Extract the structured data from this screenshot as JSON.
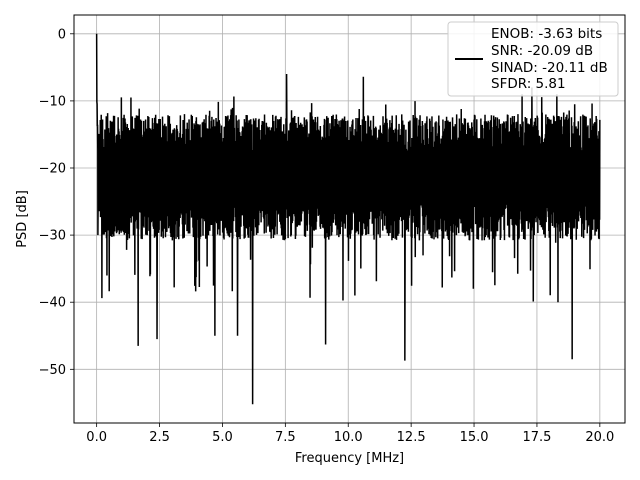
{
  "chart_data": {
    "type": "line",
    "title": "",
    "xlabel": "Frequency [MHz]",
    "ylabel": "PSD [dB]",
    "xlim": [
      -0.9,
      21.0
    ],
    "ylim": [
      -58.0,
      2.8
    ],
    "xticks": [
      0.0,
      2.5,
      5.0,
      7.5,
      10.0,
      12.5,
      15.0,
      17.5,
      20.0
    ],
    "xtick_labels": [
      "0.0",
      "2.5",
      "5.0",
      "7.5",
      "10.0",
      "12.5",
      "15.0",
      "17.5",
      "20.0"
    ],
    "yticks": [
      0,
      -10,
      -20,
      -30,
      -40,
      -50
    ],
    "ytick_labels": [
      "0",
      "−10",
      "−20",
      "−30",
      "−40",
      "−50"
    ],
    "grid": true,
    "legend_position": "top-right",
    "series": [
      {
        "color": "#000000",
        "x_start": 0.0,
        "x_end": 20.0,
        "band_upper_typical": -12,
        "band_lower_typical": -29,
        "values_notable": [
          {
            "x": 0.0,
            "y": 0.0
          },
          {
            "x": 0.05,
            "y": -30.0
          },
          {
            "x": 1.65,
            "y": -46.5
          },
          {
            "x": 2.4,
            "y": -45.5
          },
          {
            "x": 4.7,
            "y": -45.0
          },
          {
            "x": 5.6,
            "y": -45.0
          },
          {
            "x": 6.2,
            "y": -55.2
          },
          {
            "x": 7.55,
            "y": -6.0
          },
          {
            "x": 9.1,
            "y": -46.3
          },
          {
            "x": 10.6,
            "y": -6.4
          },
          {
            "x": 12.25,
            "y": -48.7
          },
          {
            "x": 17.3,
            "y": -8.0
          },
          {
            "x": 18.9,
            "y": -48.5
          }
        ]
      }
    ],
    "legend": {
      "lines": [
        "ENOB: -3.63 bits",
        "SNR: -20.09 dB",
        "SINAD: -20.11 dB",
        "SFDR: 5.81"
      ]
    }
  }
}
